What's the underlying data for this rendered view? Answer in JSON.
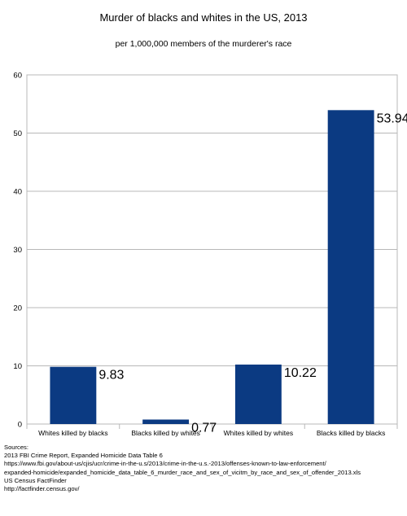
{
  "chart_data": {
    "type": "bar",
    "title": "Murder of blacks and whites in the US, 2013",
    "subtitle": "per 1,000,000 members of the murderer's race",
    "categories": [
      "Whites killed by blacks",
      "Blacks killed by whites",
      "Whites killed by whites",
      "Blacks killed by blacks"
    ],
    "values": [
      9.83,
      0.77,
      10.22,
      53.94
    ],
    "data_labels": [
      "9.83",
      "0.77",
      "10.22",
      "53.94"
    ],
    "ylim": [
      0,
      60
    ],
    "yticks": [
      0,
      10,
      20,
      30,
      40,
      50,
      60
    ],
    "grid": true,
    "xlabel": "",
    "ylabel": "",
    "bar_color": "#0b3a82"
  },
  "sources": {
    "heading": "Sources:",
    "lines": [
      "2013 FBI Crime Report, Expanded Homicide Data Table 6",
      "https://www.fbi.gov/about-us/cjis/ucr/crime-in-the-u.s/2013/crime-in-the-u.s.-2013/offenses-known-to-law-enforcement/",
      "expanded-homicide/expanded_homicide_data_table_6_murder_race_and_sex_of_vicitm_by_race_and_sex_of_offender_2013.xls",
      "US Census FactFinder",
      "http://factfinder.census.gov/"
    ]
  }
}
